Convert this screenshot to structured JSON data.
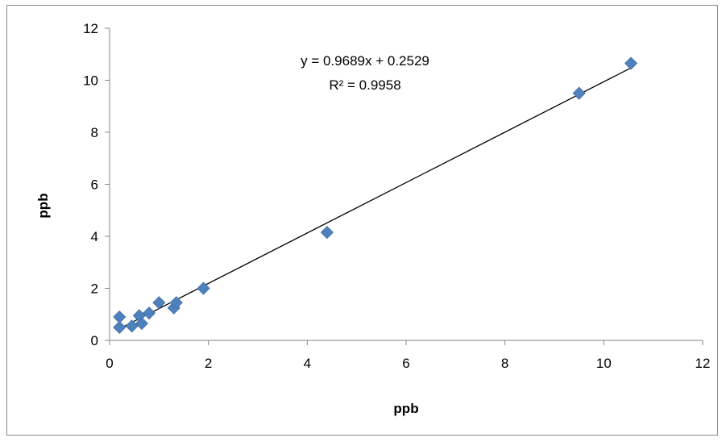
{
  "chart_data": {
    "type": "scatter",
    "title": "",
    "xlabel": "ppb",
    "ylabel": "ppb",
    "xlim": [
      0,
      12
    ],
    "ylim": [
      0,
      12
    ],
    "x_ticks": [
      0,
      2,
      4,
      6,
      8,
      10,
      12
    ],
    "y_ticks": [
      0,
      2,
      4,
      6,
      8,
      10,
      12
    ],
    "grid": false,
    "legend": "none",
    "marker": "diamond",
    "marker_color": "#4F81BD",
    "trendline_color": "#000000",
    "series": [
      {
        "points": [
          {
            "x": 0.2,
            "y": 0.5
          },
          {
            "x": 0.2,
            "y": 0.9
          },
          {
            "x": 0.45,
            "y": 0.55
          },
          {
            "x": 0.6,
            "y": 0.95
          },
          {
            "x": 0.65,
            "y": 0.65
          },
          {
            "x": 0.8,
            "y": 1.05
          },
          {
            "x": 1.0,
            "y": 1.45
          },
          {
            "x": 1.3,
            "y": 1.25
          },
          {
            "x": 1.35,
            "y": 1.45
          },
          {
            "x": 1.9,
            "y": 2.0
          },
          {
            "x": 4.4,
            "y": 4.15
          },
          {
            "x": 9.5,
            "y": 9.5
          },
          {
            "x": 10.55,
            "y": 10.65
          }
        ]
      }
    ],
    "trendline": {
      "slope": 0.9689,
      "intercept": 0.2529,
      "x_range": [
        0.2,
        10.55
      ],
      "equation": "y = 0.9689x + 0.2529",
      "r_squared": "R² = 0.9958"
    }
  }
}
